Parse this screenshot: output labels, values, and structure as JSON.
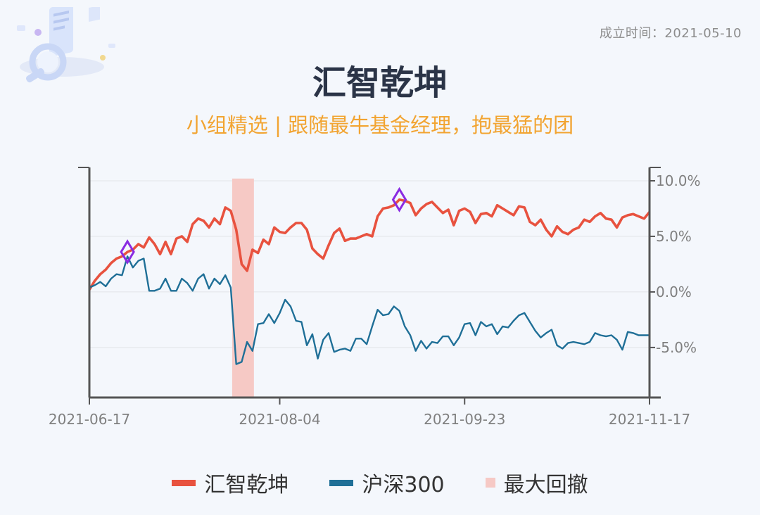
{
  "header": {
    "founded_label": "成立时间：",
    "founded_date": "2021-05-10",
    "title": "汇智乾坤",
    "subtitle": "小组精选 | 跟随最牛基金经理，抱最猛的团"
  },
  "colors": {
    "fund": "#e8523f",
    "index": "#1f6f97",
    "drawdown": "#f6c9c5",
    "marker": "#8a2be2",
    "axis": "#555555",
    "grid": "#e2e4e8",
    "tick_text": "#7f7f7f"
  },
  "legend": [
    {
      "label": "汇智乾坤",
      "swatch": "line",
      "color": "#e8523f"
    },
    {
      "label": "沪深300",
      "swatch": "line",
      "color": "#1f6f97"
    },
    {
      "label": "最大回撤",
      "swatch": "area",
      "color": "#f6c9c5"
    }
  ],
  "chart_data": {
    "type": "line",
    "y_ticks": [
      10.0,
      5.0,
      0.0,
      -5.0
    ],
    "y_tick_labels": [
      "10.0%",
      "5.0%",
      "0.0%",
      "-5.0%"
    ],
    "ylim": [
      -9.5,
      11.2
    ],
    "y_axis_side": "right",
    "grid": true,
    "legend_position": "bottom",
    "x_index_range": [
      0,
      103
    ],
    "x_ticks": [
      {
        "index": 0,
        "label": "2021-06-17"
      },
      {
        "index": 35,
        "label": "2021-08-04"
      },
      {
        "index": 69,
        "label": "2021-09-23"
      },
      {
        "index": 103,
        "label": "2021-11-17"
      }
    ],
    "drawdown_span_index": [
      26,
      30
    ],
    "series": [
      {
        "name": "汇智乾坤",
        "values": [
          0.2,
          1.0,
          1.6,
          2.0,
          2.6,
          3.0,
          3.2,
          3.6,
          3.8,
          4.3,
          4.0,
          4.9,
          4.3,
          3.4,
          4.5,
          3.4,
          4.8,
          5.0,
          4.5,
          6.1,
          6.6,
          6.4,
          5.8,
          6.6,
          6.1,
          7.6,
          7.3,
          5.6,
          2.5,
          1.9,
          3.8,
          3.5,
          4.7,
          4.3,
          5.8,
          5.4,
          5.3,
          5.8,
          6.2,
          6.2,
          5.6,
          3.9,
          3.4,
          3.0,
          4.2,
          5.3,
          5.7,
          4.6,
          4.8,
          4.8,
          5.0,
          5.2,
          5.0,
          6.8,
          7.5,
          7.6,
          7.8,
          8.3,
          8.2,
          8.0,
          6.9,
          7.5,
          7.9,
          8.1,
          7.6,
          7.1,
          7.4,
          6.0,
          7.3,
          7.5,
          7.2,
          6.2,
          7.0,
          7.1,
          6.8,
          7.8,
          7.5,
          7.2,
          6.9,
          7.7,
          7.6,
          6.3,
          6.0,
          6.5,
          5.6,
          5.0,
          5.9,
          5.4,
          5.2,
          5.6,
          5.8,
          6.5,
          6.3,
          6.8,
          7.1,
          6.6,
          6.5,
          5.8,
          6.7,
          6.9,
          7.0,
          6.8,
          6.6,
          7.2
        ]
      },
      {
        "name": "沪深300",
        "values": [
          0.4,
          0.6,
          0.9,
          0.5,
          1.2,
          1.6,
          1.5,
          3.2,
          2.2,
          2.8,
          3.0,
          0.1,
          0.1,
          0.3,
          1.2,
          0.1,
          0.1,
          1.2,
          0.8,
          0.1,
          1.2,
          1.6,
          0.3,
          1.2,
          0.7,
          1.5,
          0.4,
          -6.5,
          -6.3,
          -4.5,
          -5.3,
          -2.9,
          -2.8,
          -2.0,
          -2.8,
          -1.9,
          -0.7,
          -1.3,
          -2.6,
          -2.7,
          -4.8,
          -3.8,
          -6.0,
          -4.3,
          -3.7,
          -5.4,
          -5.2,
          -5.1,
          -5.3,
          -4.2,
          -4.2,
          -4.7,
          -3.1,
          -1.6,
          -2.1,
          -2.0,
          -1.3,
          -1.7,
          -3.1,
          -3.9,
          -5.3,
          -4.4,
          -5.1,
          -4.5,
          -4.6,
          -4.0,
          -4.0,
          -4.8,
          -4.1,
          -2.9,
          -2.8,
          -3.9,
          -2.7,
          -3.1,
          -2.9,
          -3.8,
          -3.1,
          -3.2,
          -2.6,
          -2.1,
          -1.9,
          -2.7,
          -3.5,
          -4.1,
          -3.7,
          -3.4,
          -4.8,
          -5.1,
          -4.6,
          -4.5,
          -4.6,
          -4.7,
          -4.5,
          -3.7,
          -3.9,
          -4.0,
          -3.9,
          -4.3,
          -5.2,
          -3.6,
          -3.7,
          -3.9,
          -3.9,
          -3.9
        ]
      }
    ],
    "markers": [
      {
        "series": "汇智乾坤",
        "index": 7,
        "value": 3.6
      },
      {
        "series": "汇智乾坤",
        "index": 57,
        "value": 8.3
      }
    ]
  }
}
